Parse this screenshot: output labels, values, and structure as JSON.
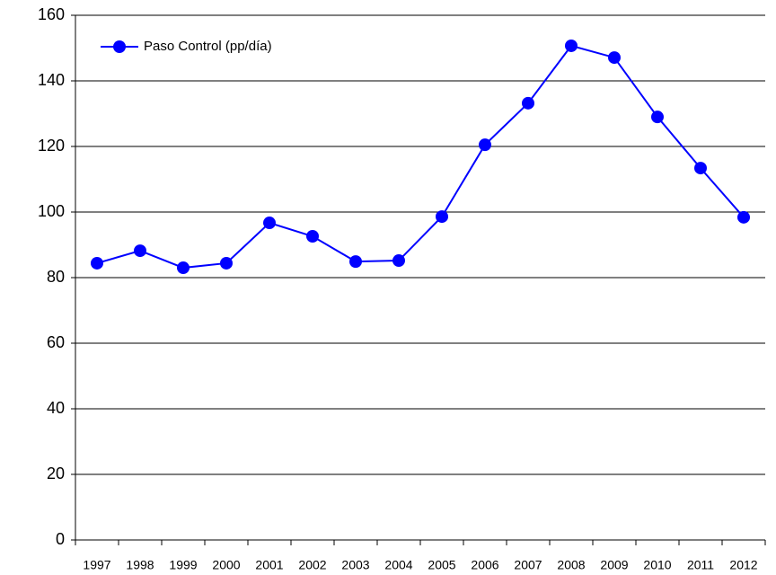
{
  "chart_data": {
    "type": "line",
    "categories": [
      "1997",
      "1998",
      "1999",
      "2000",
      "2001",
      "2002",
      "2003",
      "2004",
      "2005",
      "2006",
      "2007",
      "2008",
      "2009",
      "2010",
      "2011",
      "2012"
    ],
    "series": [
      {
        "name": "Paso Control (pp/día)",
        "color": "#0000ff",
        "values": [
          84.4,
          88.2,
          83.0,
          84.4,
          96.7,
          92.6,
          84.9,
          85.2,
          98.6,
          120.5,
          133.2,
          150.7,
          147.1,
          129.0,
          113.4,
          98.4
        ]
      }
    ],
    "ylim": [
      0,
      160
    ],
    "yticks": [
      0,
      20,
      40,
      60,
      80,
      100,
      120,
      140,
      160
    ],
    "grid": true,
    "legend": "top-left"
  }
}
